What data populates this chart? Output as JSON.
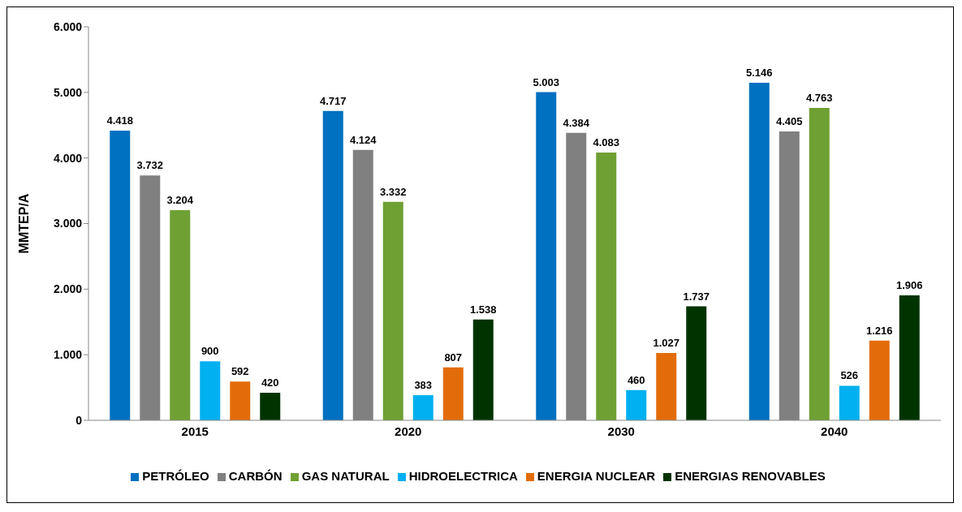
{
  "chart_data": {
    "type": "bar",
    "ylabel": "MMTEP/A",
    "categories": [
      "2015",
      "2020",
      "2030",
      "2040"
    ],
    "series": [
      {
        "name": "PETRÓLEO",
        "color": "#0070c0",
        "values": [
          4418,
          4717,
          5003,
          5146
        ],
        "value_labels": [
          "4.418",
          "4.717",
          "5.003",
          "5.146"
        ]
      },
      {
        "name": "CARBÓN",
        "color": "#808080",
        "values": [
          3732,
          4124,
          4384,
          4405
        ],
        "value_labels": [
          "3.732",
          "4.124",
          "4.384",
          "4.405"
        ]
      },
      {
        "name": "GAS NATURAL",
        "color": "#6fa033",
        "values": [
          3204,
          3332,
          4083,
          4763
        ],
        "value_labels": [
          "3.204",
          "3.332",
          "4.083",
          "4.763"
        ]
      },
      {
        "name": "HIDROELECTRICA",
        "color": "#00b0f0",
        "values": [
          900,
          383,
          460,
          526
        ],
        "value_labels": [
          "900",
          "383",
          "460",
          "526"
        ]
      },
      {
        "name": "ENERGIA NUCLEAR",
        "color": "#e36c0a",
        "values": [
          592,
          807,
          1027,
          1216
        ],
        "value_labels": [
          "592",
          "807",
          "1.027",
          "1.216"
        ]
      },
      {
        "name": "ENERGIAS RENOVABLES",
        "color": "#003300",
        "values": [
          420,
          1538,
          1737,
          1906
        ],
        "value_labels": [
          "420",
          "1.538",
          "1.737",
          "1.906"
        ]
      }
    ],
    "ylim": [
      0,
      6000
    ],
    "yticks": [
      {
        "value": 0,
        "label": "0"
      },
      {
        "value": 1000,
        "label": "1.000"
      },
      {
        "value": 2000,
        "label": "2.000"
      },
      {
        "value": 3000,
        "label": "3.000"
      },
      {
        "value": 4000,
        "label": "4.000"
      },
      {
        "value": 5000,
        "label": "5.000"
      },
      {
        "value": 6000,
        "label": "6.000"
      }
    ],
    "grid": false,
    "legend": "bottom"
  }
}
